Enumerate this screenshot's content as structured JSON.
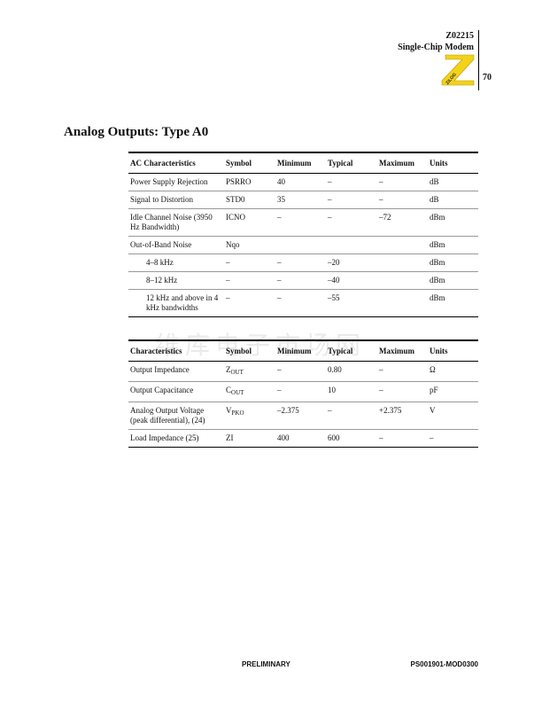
{
  "header": {
    "part": "Z02215",
    "product": "Single-Chip Modem",
    "page": "70",
    "logo_text": "ZiLOG"
  },
  "title": "Analog Outputs: Type A0",
  "table1": {
    "headers": [
      "AC Characteristics",
      "Symbol",
      "Minimum",
      "Typical",
      "Maximum",
      "Units"
    ],
    "rows": [
      [
        "Power Supply Rejection",
        "PSRRO",
        "40",
        "–",
        "–",
        "dB"
      ],
      [
        "Signal to Distortion",
        "STD0",
        "35",
        "–",
        "–",
        "dB"
      ],
      [
        "Idle Channel Noise (3950 Hz Bandwidth)",
        "ICNO",
        "–",
        "–",
        "–72",
        "dBm"
      ],
      [
        "Out-of-Band Noise",
        "Nqo",
        "",
        "",
        "",
        "dBm"
      ],
      [
        "4–8 kHz",
        "–",
        "–",
        "–20",
        "",
        "dBm"
      ],
      [
        "8–12 kHz",
        "–",
        "–",
        "–40",
        "",
        "dBm"
      ],
      [
        "12 kHz and above in 4 kHz bandwidths",
        "–",
        "–",
        "–55",
        "",
        "dBm"
      ]
    ]
  },
  "table2": {
    "headers": [
      "Characteristics",
      "Symbol",
      "Minimum",
      "Typical",
      "Maximum",
      "Units"
    ],
    "rows": [
      {
        "name": "Output Impedance",
        "sym": "Z",
        "sub": "OUT",
        "min": "–",
        "typ": "0.80",
        "max": "–",
        "units": "Ω"
      },
      {
        "name": "Output Capacitance",
        "sym": "C",
        "sub": "OUT",
        "min": "–",
        "typ": "10",
        "max": "–",
        "units": "pF"
      },
      {
        "name": "Analog Output Voltage (peak differential), (24)",
        "sym": "V",
        "sub": "PKO",
        "min": "–2.375",
        "typ": "–",
        "max": "+2.375",
        "units": "V"
      },
      {
        "name": "Load Impedance (25)",
        "sym": "ZI",
        "sub": "",
        "min": "400",
        "typ": "600",
        "max": "–",
        "units": "–"
      }
    ]
  },
  "watermark": "维库电子市场网",
  "footer": {
    "status": "PRELIMINARY",
    "doc": "PS001901-MOD0300"
  },
  "colors": {
    "logo": "#f2d21b"
  }
}
